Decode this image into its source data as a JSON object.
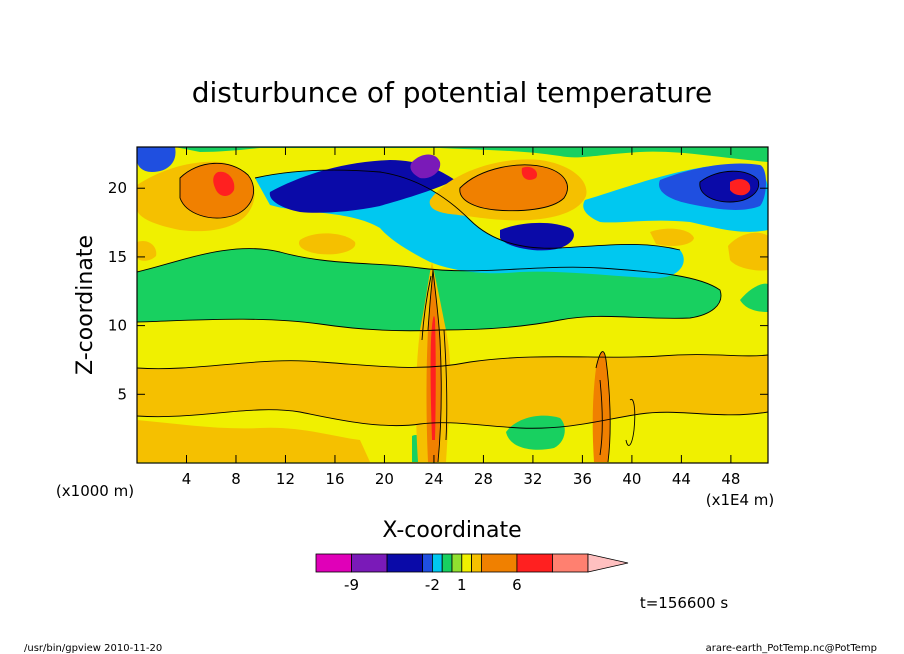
{
  "chart_data": {
    "type": "heatmap",
    "title": "disturbunce of potential temperature",
    "xlabel": "X-coordinate",
    "ylabel": "Z-coordinate",
    "x_unit": "(x1E4 m)",
    "y_unit": "(x1000 m)",
    "xlim": [
      0,
      51
    ],
    "ylim": [
      0,
      23
    ],
    "x_ticks": [
      "4",
      "8",
      "12",
      "16",
      "20",
      "24",
      "28",
      "32",
      "36",
      "40",
      "44",
      "48"
    ],
    "y_ticks": [
      "5",
      "10",
      "15",
      "20"
    ],
    "colorbar": {
      "ticks": [
        "-9",
        "-2",
        "1",
        "6"
      ],
      "levels": [
        -12,
        -9,
        -6,
        -3,
        -2,
        -1,
        0,
        1,
        2,
        3,
        6,
        9,
        12
      ],
      "colors": [
        "#e000b8",
        "#7a1ab8",
        "#0a0aa8",
        "#1f4fe0",
        "#00c8f0",
        "#18d060",
        "#90e030",
        "#f0f000",
        "#f5c000",
        "#f08000",
        "#ff2020",
        "#ff8070",
        "#ffc0c0"
      ]
    },
    "annotation": "t=156600 s"
  },
  "footer": {
    "left": "/usr/bin/gpview   2010-11-20",
    "right": "arare-earth_PotTemp.nc@PotTemp"
  }
}
